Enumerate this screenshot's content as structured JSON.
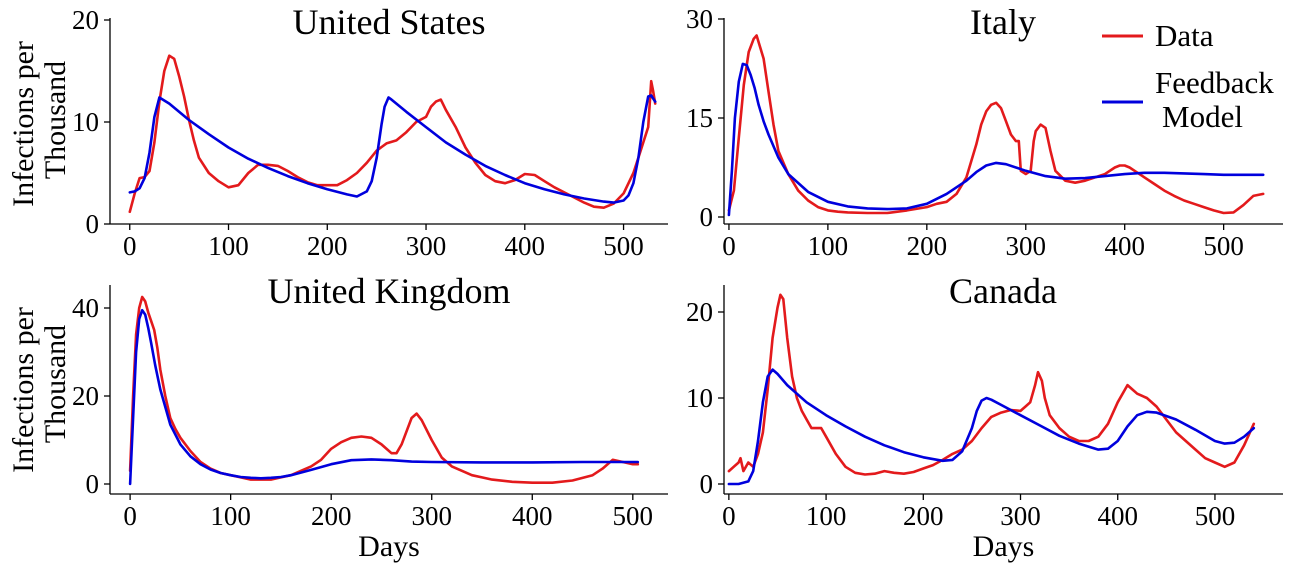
{
  "chart_data": [
    {
      "type": "line",
      "title": "United States",
      "xlabel": "",
      "ylabel": "Infections per Thousand",
      "xlim": [
        -20,
        545
      ],
      "ylim": [
        0,
        20
      ],
      "xticks": [
        0,
        100,
        200,
        300,
        400,
        500
      ],
      "yticks": [
        0,
        10,
        20
      ],
      "series": [
        {
          "name": "Data",
          "color": "#e31a1c",
          "x": [
            0,
            5,
            10,
            15,
            20,
            25,
            30,
            35,
            40,
            45,
            50,
            55,
            60,
            65,
            70,
            80,
            90,
            100,
            110,
            120,
            130,
            140,
            150,
            160,
            170,
            180,
            190,
            200,
            210,
            220,
            230,
            240,
            250,
            260,
            270,
            280,
            290,
            300,
            305,
            310,
            315,
            320,
            330,
            340,
            350,
            360,
            370,
            380,
            390,
            400,
            410,
            420,
            430,
            440,
            450,
            460,
            470,
            480,
            490,
            500,
            510,
            515,
            520,
            525,
            528,
            530,
            532
          ],
          "y": [
            1.2,
            3.0,
            4.5,
            4.6,
            5.2,
            8.0,
            12.0,
            15.0,
            16.5,
            16.2,
            14.5,
            12.5,
            10.2,
            8.2,
            6.5,
            5.0,
            4.2,
            3.6,
            3.8,
            5.0,
            5.8,
            5.8,
            5.7,
            5.2,
            4.6,
            4.1,
            3.8,
            3.8,
            3.8,
            4.3,
            5.0,
            6.0,
            7.2,
            7.9,
            8.2,
            9.0,
            10.0,
            10.5,
            11.5,
            12.0,
            12.2,
            11.2,
            9.5,
            7.5,
            6.0,
            4.8,
            4.2,
            4.0,
            4.3,
            4.9,
            4.8,
            4.2,
            3.6,
            3.1,
            2.6,
            2.1,
            1.7,
            1.6,
            2.0,
            3.0,
            5.0,
            6.5,
            8.0,
            9.5,
            14.0,
            13.0,
            11.8
          ]
        },
        {
          "name": "Feedback Model",
          "color": "#0000dd",
          "x": [
            0,
            5,
            10,
            15,
            20,
            25,
            30,
            40,
            60,
            80,
            100,
            120,
            140,
            160,
            180,
            200,
            220,
            230,
            240,
            245,
            250,
            255,
            258,
            262,
            265,
            280,
            300,
            320,
            340,
            360,
            380,
            400,
            420,
            440,
            460,
            480,
            490,
            500,
            505,
            510,
            515,
            520,
            525,
            528,
            532
          ],
          "y": [
            3.1,
            3.2,
            3.5,
            4.5,
            7.0,
            10.5,
            12.4,
            11.8,
            10.2,
            8.8,
            7.5,
            6.4,
            5.5,
            4.7,
            4.0,
            3.4,
            2.9,
            2.7,
            3.2,
            4.2,
            6.5,
            9.8,
            11.5,
            12.4,
            12.2,
            11.0,
            9.5,
            8.0,
            6.8,
            5.7,
            4.8,
            4.0,
            3.4,
            2.9,
            2.5,
            2.2,
            2.1,
            2.3,
            2.8,
            4.0,
            6.5,
            10.0,
            12.5,
            12.6,
            12.0
          ]
        }
      ]
    },
    {
      "type": "line",
      "title": "Italy",
      "xlabel": "",
      "ylabel": "",
      "xlim": [
        -5,
        560
      ],
      "ylim": [
        -1,
        30
      ],
      "xticks": [
        0,
        100,
        200,
        300,
        400,
        500
      ],
      "yticks": [
        0,
        15,
        30
      ],
      "series": [
        {
          "name": "Data",
          "color": "#e31a1c",
          "x": [
            0,
            5,
            10,
            15,
            20,
            25,
            28,
            30,
            35,
            40,
            45,
            50,
            60,
            70,
            80,
            90,
            100,
            110,
            120,
            140,
            160,
            180,
            200,
            210,
            220,
            230,
            240,
            250,
            255,
            260,
            265,
            270,
            275,
            280,
            285,
            290,
            293,
            295,
            300,
            305,
            308,
            310,
            315,
            320,
            325,
            330,
            340,
            350,
            360,
            370,
            380,
            390,
            395,
            400,
            405,
            410,
            420,
            430,
            440,
            450,
            460,
            470,
            480,
            490,
            500,
            510,
            520,
            530,
            540
          ],
          "y": [
            1.0,
            4.0,
            12.0,
            20.0,
            25.0,
            27.0,
            27.5,
            26.5,
            24.0,
            19.0,
            14.0,
            10.0,
            6.5,
            4.0,
            2.5,
            1.5,
            1.0,
            0.8,
            0.7,
            0.6,
            0.6,
            1.0,
            1.5,
            2.0,
            2.3,
            3.5,
            6.0,
            11.0,
            14.0,
            16.0,
            17.0,
            17.3,
            16.5,
            14.5,
            12.5,
            11.5,
            11.5,
            7.0,
            6.5,
            7.0,
            11.5,
            13.0,
            14.0,
            13.5,
            10.0,
            7.0,
            5.5,
            5.2,
            5.5,
            6.0,
            6.5,
            7.5,
            7.8,
            7.8,
            7.5,
            7.0,
            6.0,
            5.0,
            4.0,
            3.2,
            2.5,
            2.0,
            1.5,
            1.0,
            0.6,
            0.7,
            1.8,
            3.2,
            3.5
          ]
        },
        {
          "name": "Feedback Model",
          "color": "#0000dd",
          "x": [
            0,
            3,
            6,
            10,
            14,
            18,
            22,
            26,
            30,
            35,
            40,
            50,
            60,
            80,
            100,
            120,
            140,
            160,
            180,
            200,
            220,
            240,
            250,
            260,
            270,
            280,
            300,
            320,
            340,
            360,
            380,
            400,
            420,
            440,
            460,
            480,
            500,
            520,
            540
          ],
          "y": [
            0.3,
            7.0,
            15.0,
            20.5,
            23.2,
            23.0,
            21.5,
            19.5,
            17.0,
            14.5,
            12.5,
            9.0,
            6.5,
            3.8,
            2.3,
            1.6,
            1.3,
            1.2,
            1.3,
            2.0,
            3.5,
            5.5,
            6.8,
            7.8,
            8.2,
            8.0,
            7.0,
            6.2,
            5.8,
            5.9,
            6.2,
            6.5,
            6.7,
            6.7,
            6.6,
            6.5,
            6.4,
            6.4,
            6.4
          ]
        }
      ]
    },
    {
      "type": "line",
      "title": "United Kingdom",
      "xlabel": "Days",
      "ylabel": "Infections per Thousand",
      "xlim": [
        -20,
        535
      ],
      "ylim": [
        -2,
        44
      ],
      "xticks": [
        0,
        100,
        200,
        300,
        400,
        500
      ],
      "yticks": [
        0,
        20,
        40
      ],
      "series": [
        {
          "name": "Data",
          "color": "#e31a1c",
          "x": [
            0,
            3,
            6,
            9,
            12,
            15,
            18,
            21,
            24,
            27,
            30,
            35,
            40,
            45,
            50,
            60,
            70,
            80,
            90,
            100,
            110,
            120,
            130,
            140,
            150,
            160,
            170,
            180,
            190,
            200,
            210,
            220,
            230,
            240,
            250,
            260,
            265,
            270,
            275,
            280,
            285,
            290,
            300,
            310,
            320,
            330,
            340,
            350,
            360,
            380,
            400,
            420,
            440,
            460,
            470,
            480,
            490,
            500,
            505
          ],
          "y": [
            3.0,
            20.0,
            34.0,
            40.0,
            42.5,
            41.5,
            39.0,
            37.0,
            35.0,
            31.0,
            26.0,
            20.0,
            15.0,
            12.5,
            10.5,
            7.5,
            5.0,
            3.5,
            2.5,
            2.0,
            1.5,
            1.0,
            1.0,
            1.0,
            1.5,
            2.0,
            3.0,
            4.0,
            5.5,
            8.0,
            9.5,
            10.5,
            10.8,
            10.5,
            9.0,
            7.0,
            7.0,
            9.0,
            12.0,
            15.0,
            16.0,
            14.5,
            10.0,
            6.0,
            4.0,
            3.0,
            2.0,
            1.5,
            1.0,
            0.5,
            0.3,
            0.3,
            0.8,
            2.0,
            3.5,
            5.5,
            5.0,
            4.5,
            4.5
          ]
        },
        {
          "name": "Feedback Model",
          "color": "#0000dd",
          "x": [
            0,
            3,
            6,
            9,
            12,
            15,
            18,
            21,
            25,
            30,
            40,
            50,
            60,
            70,
            80,
            90,
            100,
            110,
            120,
            130,
            140,
            150,
            160,
            180,
            200,
            220,
            240,
            260,
            280,
            300,
            350,
            400,
            450,
            500,
            505
          ],
          "y": [
            0.0,
            15.0,
            30.0,
            37.5,
            39.5,
            38.5,
            35.5,
            32.0,
            27.0,
            21.5,
            13.5,
            9.0,
            6.3,
            4.5,
            3.3,
            2.5,
            2.0,
            1.6,
            1.4,
            1.3,
            1.4,
            1.6,
            2.0,
            3.2,
            4.5,
            5.4,
            5.6,
            5.4,
            5.1,
            5.0,
            4.9,
            4.9,
            5.0,
            5.0,
            5.0
          ]
        }
      ]
    },
    {
      "type": "line",
      "title": "Canada",
      "xlabel": "Days",
      "ylabel": "",
      "xlim": [
        -5,
        570
      ],
      "ylim": [
        -1,
        23
      ],
      "xticks": [
        0,
        100,
        200,
        300,
        400,
        500
      ],
      "yticks": [
        0,
        10,
        20
      ],
      "series": [
        {
          "name": "Data",
          "color": "#e31a1c",
          "x": [
            0,
            5,
            10,
            12,
            15,
            20,
            25,
            30,
            35,
            40,
            45,
            50,
            53,
            56,
            60,
            65,
            70,
            75,
            80,
            85,
            90,
            95,
            100,
            110,
            120,
            130,
            140,
            150,
            160,
            170,
            180,
            190,
            200,
            210,
            220,
            230,
            240,
            250,
            260,
            270,
            280,
            290,
            300,
            305,
            310,
            315,
            318,
            322,
            325,
            330,
            340,
            350,
            360,
            370,
            380,
            390,
            400,
            410,
            415,
            420,
            430,
            440,
            450,
            460,
            470,
            480,
            490,
            500,
            510,
            520,
            530,
            540
          ],
          "y": [
            1.5,
            2.0,
            2.5,
            3.0,
            1.5,
            2.5,
            2.0,
            3.5,
            6.0,
            11.0,
            17.0,
            20.5,
            22.0,
            21.5,
            17.0,
            12.5,
            10.0,
            8.5,
            7.5,
            6.5,
            6.5,
            6.5,
            5.5,
            3.5,
            2.0,
            1.3,
            1.1,
            1.2,
            1.5,
            1.3,
            1.2,
            1.4,
            1.8,
            2.2,
            2.8,
            3.5,
            4.0,
            5.0,
            6.5,
            7.8,
            8.3,
            8.6,
            8.5,
            9.0,
            9.5,
            11.5,
            13.0,
            12.0,
            10.0,
            8.0,
            6.5,
            5.5,
            5.0,
            5.0,
            5.5,
            7.0,
            9.5,
            11.5,
            11.0,
            10.5,
            10.0,
            9.0,
            7.5,
            6.0,
            5.0,
            4.0,
            3.0,
            2.5,
            2.0,
            2.5,
            4.5,
            7.0
          ]
        },
        {
          "name": "Feedback Model",
          "color": "#0000dd",
          "x": [
            0,
            10,
            20,
            25,
            30,
            35,
            40,
            45,
            50,
            60,
            80,
            100,
            120,
            140,
            160,
            180,
            200,
            220,
            230,
            240,
            250,
            255,
            260,
            265,
            270,
            280,
            300,
            320,
            340,
            360,
            380,
            390,
            400,
            410,
            420,
            430,
            440,
            460,
            480,
            500,
            510,
            520,
            530,
            540
          ],
          "y": [
            0.0,
            0.0,
            0.3,
            1.5,
            5.0,
            9.5,
            12.5,
            13.3,
            12.8,
            11.5,
            9.5,
            8.0,
            6.7,
            5.5,
            4.5,
            3.7,
            3.1,
            2.7,
            2.8,
            3.8,
            6.5,
            8.5,
            9.7,
            10.0,
            9.8,
            9.2,
            8.0,
            6.8,
            5.6,
            4.7,
            4.0,
            4.1,
            5.0,
            6.7,
            8.0,
            8.4,
            8.3,
            7.5,
            6.3,
            5.0,
            4.7,
            4.8,
            5.5,
            6.5
          ]
        }
      ]
    }
  ],
  "legend": {
    "position": "top-right",
    "items": [
      {
        "label": "Data",
        "color": "#e31a1c"
      },
      {
        "label": "Feedback",
        "label2": "Model",
        "color": "#0000dd"
      }
    ]
  }
}
